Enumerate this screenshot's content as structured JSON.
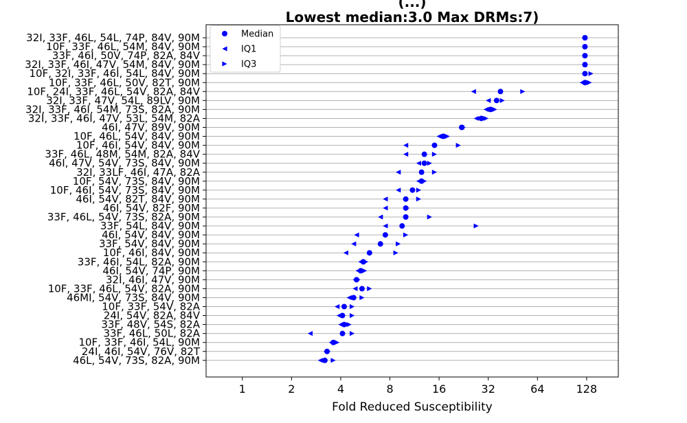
{
  "chart_data": {
    "type": "scatter",
    "title_lines": [
      "(...)",
      "Lowest median:3.0 Max DRMs:7)"
    ],
    "xlabel": "Fold Reduced Susceptibility",
    "xscale": "log2",
    "xticks": [
      1,
      2,
      4,
      8,
      16,
      32,
      64,
      128
    ],
    "xtick_labels": [
      "1",
      "2",
      "4",
      "8",
      "16",
      "32",
      "64",
      "128"
    ],
    "xlim": [
      0.6,
      200
    ],
    "grid": "horizontal",
    "legend_position": "top-left",
    "legend": [
      {
        "label": "Median",
        "marker": "circle"
      },
      {
        "label": "IQ1",
        "marker": "triangle-left"
      },
      {
        "label": "IQ3",
        "marker": "triangle-right"
      }
    ],
    "colors": {
      "marker": "#0000ff",
      "grid": "#b0b0b0"
    },
    "categories": [
      "32I, 33F, 46L, 54L, 74P, 84V, 90M",
      "10F, 33F, 46L, 54M, 84V, 90M",
      "33F, 46I, 50V, 74P, 82A, 84V",
      "32I, 33F, 46I, 47V, 54M, 84V, 90M",
      "10F, 32I, 33F, 46I, 54L, 84V, 90M",
      "10F, 33F, 46L, 50V, 82T, 90M",
      "10F, 24I, 33F, 46L, 54V, 82A, 84V",
      "32I, 33F, 47V, 54L, 89LV, 90M",
      "32I, 33F, 46I, 54M, 73S, 82A, 90M",
      "32I, 33F, 46I, 47V, 53L, 54M, 82A",
      "46I, 47V, 89V, 90M",
      "10F, 46L, 54V, 84V, 90M",
      "10F, 46I, 54V, 84V, 90M",
      "33F, 46L, 48M, 54M, 82A, 84V",
      "46I, 47V, 54V, 73S, 84V, 90M",
      "32I, 33LF, 46I, 47A, 82A",
      "10F, 54V, 73S, 84V, 90M",
      "10F, 46I, 54V, 73S, 84V, 90M",
      "46I, 54V, 82T, 84V, 90M",
      "46I, 54V, 82F, 90M",
      "33F, 46L, 54V, 73S, 82A, 90M",
      "33F, 54L, 84V, 90M",
      "46I, 54V, 84V, 90M",
      "33F, 54V, 84V, 90M",
      "10F, 46I, 84V, 90M",
      "33F, 46I, 54L, 82A, 90M",
      "46I, 54V, 74P, 90M",
      "32I, 46I, 47V, 90M",
      "10F, 33F, 46L, 54V, 82A, 90M",
      "46MI, 54V, 73S, 84V, 90M",
      "10F, 33F, 54V, 82A",
      "24I, 54V, 82A, 84V",
      "33F, 48V, 54S, 82A",
      "33F, 46L, 50L, 82A",
      "10F, 33F, 46I, 54L, 90M",
      "24I, 46I, 54V, 76V, 82T",
      "46L, 54V, 73S, 82A, 90M"
    ],
    "series": [
      {
        "name": "Median",
        "marker": "circle",
        "values": [
          125,
          125,
          125,
          125,
          125,
          125,
          38,
          36,
          33,
          29,
          22,
          17,
          15,
          13,
          13,
          12.5,
          12.5,
          11,
          10,
          10,
          10,
          9.5,
          7.5,
          7,
          6,
          5.5,
          5.3,
          5,
          5.4,
          4.8,
          4.2,
          4.1,
          4.2,
          4.1,
          3.6,
          3.3,
          3.2
        ]
      },
      {
        "name": "IQ1",
        "marker": "triangle-left",
        "values": [
          124,
          124,
          124,
          124,
          124,
          120,
          26,
          32,
          31,
          27,
          22,
          16,
          10,
          10,
          12,
          9,
          12,
          9,
          7.5,
          7.5,
          7,
          7.5,
          5,
          4.8,
          4.3,
          5.3,
          5.1,
          4.9,
          4.9,
          4.5,
          3.8,
          3.9,
          4,
          2.6,
          3.5,
          3.25,
          3.0
        ]
      },
      {
        "name": "IQ3",
        "marker": "triangle-right",
        "values": [
          126,
          126,
          126,
          126,
          136,
          133,
          52,
          39,
          35,
          31,
          22.5,
          18,
          21,
          15,
          14,
          15,
          13,
          12,
          12,
          10.2,
          14,
          27,
          10,
          9,
          8.7,
          5.7,
          5.6,
          5.1,
          6,
          5.4,
          4.7,
          4.7,
          4.5,
          4.7,
          3.8,
          3.35,
          3.6
        ]
      }
    ]
  }
}
